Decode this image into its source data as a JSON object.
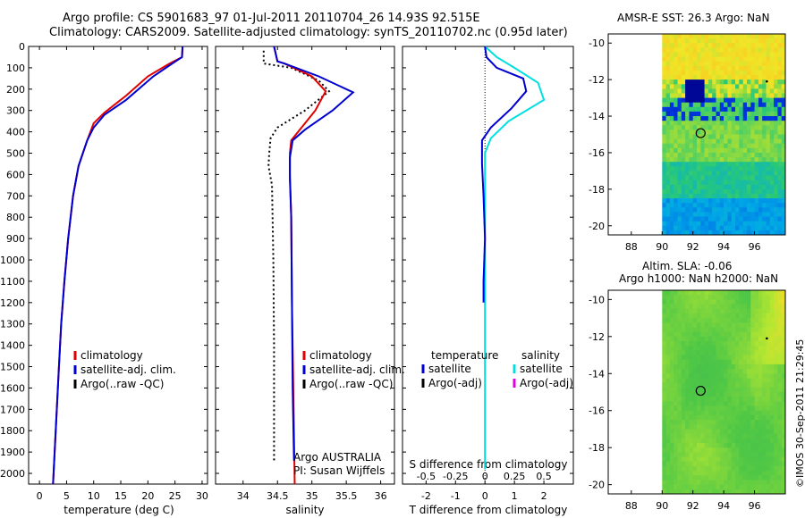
{
  "header": {
    "line1": "Argo profile: CS 5901683_97 01-Jul-2011 20110704_26 14.93S 92.515E",
    "line2": "Climatology: CARS2009. Satellite-adjusted climatology: synTS_20110702.nc (0.95d later)"
  },
  "colors": {
    "climatology": "#e00000",
    "satellite": "#0000d0",
    "argo": "#000000",
    "sat_salinity": "#00e0e0",
    "argo_salinity_adj": "#e000e0"
  },
  "temp_panel": {
    "xlabel": "temperature (deg C)",
    "xticks": [
      "0",
      "5",
      "10",
      "15",
      "20",
      "25",
      "30"
    ],
    "legend": [
      "climatology",
      "satellite-adj. clim.",
      "Argo(..raw -QC)"
    ]
  },
  "sal_panel": {
    "xlabel": "salinity",
    "xticks": [
      "34",
      "34.5",
      "35",
      "35.5",
      "36"
    ],
    "legend": [
      "climatology",
      "satellite-adj. clim.",
      "Argo(..raw -QC)"
    ],
    "note1": "Argo AUSTRALIA",
    "note2": "PI: Susan Wijffels"
  },
  "diff_panel": {
    "xlabel": "T difference from climatology",
    "xticks_t": [
      "-2",
      "-1",
      "0",
      "1",
      "2"
    ],
    "slabel": "S difference from climatology",
    "xticks_s": [
      "-0.5",
      "-0.25",
      "0",
      "0.25",
      "0.5"
    ],
    "legend_t_head": "temperature",
    "legend_s_head": "salinity",
    "legend_sat": "satellite",
    "legend_argo": "Argo(-adj)"
  },
  "map_sst": {
    "title": "AMSR-E SST: 26.3  Argo: NaN",
    "yticks": [
      "-10",
      "-12",
      "-14",
      "-16",
      "-18",
      "-20"
    ],
    "xticks": [
      "88",
      "90",
      "92",
      "94",
      "96"
    ]
  },
  "map_sla": {
    "title1": "Altim. SLA: -0.06",
    "title2": "Argo h1000: NaN  h2000: NaN",
    "yticks": [
      "-10",
      "-12",
      "-14",
      "-16",
      "-18",
      "-20"
    ],
    "xticks": [
      "88",
      "90",
      "92",
      "94",
      "96"
    ]
  },
  "credit": "©IMOS 30-Sep-2011 21:29:45",
  "chart_data": [
    {
      "type": "line",
      "xlabel": "temperature (deg C)",
      "ylabel": "",
      "xlim": [
        -2,
        31
      ],
      "ylim": [
        2050,
        0
      ],
      "y_ticks": [
        0,
        100,
        200,
        300,
        400,
        500,
        600,
        700,
        800,
        900,
        1000,
        1100,
        1200,
        1300,
        1400,
        1500,
        1600,
        1700,
        1800,
        1900,
        2000
      ],
      "series": [
        {
          "name": "climatology",
          "points": [
            [
              26.4,
              0
            ],
            [
              26.3,
              50
            ],
            [
              24,
              80
            ],
            [
              20,
              140
            ],
            [
              16,
              230
            ],
            [
              12,
              310
            ],
            [
              10,
              360
            ],
            [
              8.8,
              440
            ],
            [
              7.2,
              560
            ],
            [
              6.2,
              700
            ],
            [
              5.3,
              900
            ],
            [
              4.6,
              1100
            ],
            [
              4.0,
              1300
            ],
            [
              3.6,
              1500
            ],
            [
              3.2,
              1700
            ],
            [
              2.8,
              1900
            ],
            [
              2.5,
              2050
            ]
          ]
        },
        {
          "name": "satellite-adj. clim.",
          "points": [
            [
              26.4,
              0
            ],
            [
              26.3,
              50
            ],
            [
              24.5,
              80
            ],
            [
              21,
              140
            ],
            [
              16,
              250
            ],
            [
              12,
              320
            ],
            [
              10,
              380
            ],
            [
              8.8,
              440
            ],
            [
              7.2,
              560
            ],
            [
              6.2,
              700
            ],
            [
              5.3,
              900
            ],
            [
              4.6,
              1100
            ],
            [
              4.0,
              1300
            ],
            [
              3.6,
              1500
            ],
            [
              3.2,
              1700
            ],
            [
              2.8,
              1900
            ],
            [
              2.5,
              2050
            ]
          ]
        }
      ]
    },
    {
      "type": "line",
      "xlabel": "salinity",
      "xlim": [
        33.6,
        36.2
      ],
      "ylim": [
        2050,
        0
      ],
      "series": [
        {
          "name": "climatology",
          "points": [
            [
              34.45,
              0
            ],
            [
              34.5,
              70
            ],
            [
              34.6,
              80
            ],
            [
              35.0,
              140
            ],
            [
              35.2,
              210
            ],
            [
              35.05,
              300
            ],
            [
              34.85,
              380
            ],
            [
              34.7,
              440
            ],
            [
              34.68,
              500
            ],
            [
              34.68,
              600
            ],
            [
              34.7,
              800
            ],
            [
              34.71,
              1200
            ],
            [
              34.73,
              1600
            ],
            [
              34.75,
              2050
            ]
          ]
        },
        {
          "name": "satellite-adj. clim.",
          "points": [
            [
              34.45,
              0
            ],
            [
              34.5,
              70
            ],
            [
              34.6,
              80
            ],
            [
              35.1,
              140
            ],
            [
              35.6,
              215
            ],
            [
              35.3,
              300
            ],
            [
              34.9,
              390
            ],
            [
              34.72,
              440
            ],
            [
              34.68,
              520
            ],
            [
              34.68,
              620
            ],
            [
              34.7,
              800
            ],
            [
              34.71,
              1200
            ],
            [
              34.72,
              1600
            ],
            [
              34.74,
              1940
            ]
          ]
        },
        {
          "name": "Argo(..raw -QC)",
          "points": [
            [
              34.3,
              20
            ],
            [
              34.3,
              80
            ],
            [
              34.7,
              100
            ],
            [
              35.1,
              160
            ],
            [
              35.25,
              210
            ],
            [
              34.9,
              300
            ],
            [
              34.5,
              380
            ],
            [
              34.4,
              430
            ],
            [
              34.38,
              500
            ],
            [
              34.37,
              560
            ],
            [
              34.42,
              650
            ],
            [
              34.44,
              1000
            ],
            [
              34.45,
              1400
            ],
            [
              34.45,
              1800
            ],
            [
              34.45,
              1950
            ]
          ]
        }
      ]
    },
    {
      "type": "line",
      "xlabel": "T difference from climatology",
      "xlim": [
        -2.8,
        3.0
      ],
      "ylim": [
        2050,
        0
      ],
      "series": [
        {
          "name": "temperature satellite",
          "points": [
            [
              0,
              0
            ],
            [
              0.05,
              50
            ],
            [
              0.4,
              100
            ],
            [
              1.3,
              150
            ],
            [
              1.4,
              210
            ],
            [
              0.9,
              290
            ],
            [
              0.2,
              380
            ],
            [
              -0.1,
              440
            ],
            [
              -0.1,
              550
            ],
            [
              -0.05,
              700
            ],
            [
              0,
              900
            ],
            [
              -0.05,
              1100
            ],
            [
              -0.05,
              1200
            ]
          ]
        },
        {
          "name": "salinity satellite",
          "points": [
            [
              0,
              0
            ],
            [
              0.1,
              50
            ],
            [
              0.25,
              100
            ],
            [
              0.45,
              170
            ],
            [
              0.5,
              250
            ],
            [
              0.2,
              350
            ],
            [
              0.05,
              430
            ],
            [
              0,
              500
            ],
            [
              0,
              700
            ],
            [
              0,
              1100
            ],
            [
              0,
              1500
            ],
            [
              0,
              1900
            ],
            [
              0,
              1980
            ]
          ]
        }
      ]
    },
    {
      "type": "heatmap",
      "title": "AMSR-E SST: 26.3  Argo: NaN",
      "xlim": [
        86.5,
        98
      ],
      "ylim": [
        -20.5,
        -9.5
      ],
      "argo_position": [
        92.5,
        -14.93
      ]
    },
    {
      "type": "heatmap",
      "title": "Altim. SLA: -0.06",
      "subtitle": "Argo h1000: NaN  h2000: NaN",
      "xlim": [
        86.5,
        98
      ],
      "ylim": [
        -20.5,
        -9.5
      ],
      "argo_position": [
        92.5,
        -14.93
      ]
    }
  ]
}
